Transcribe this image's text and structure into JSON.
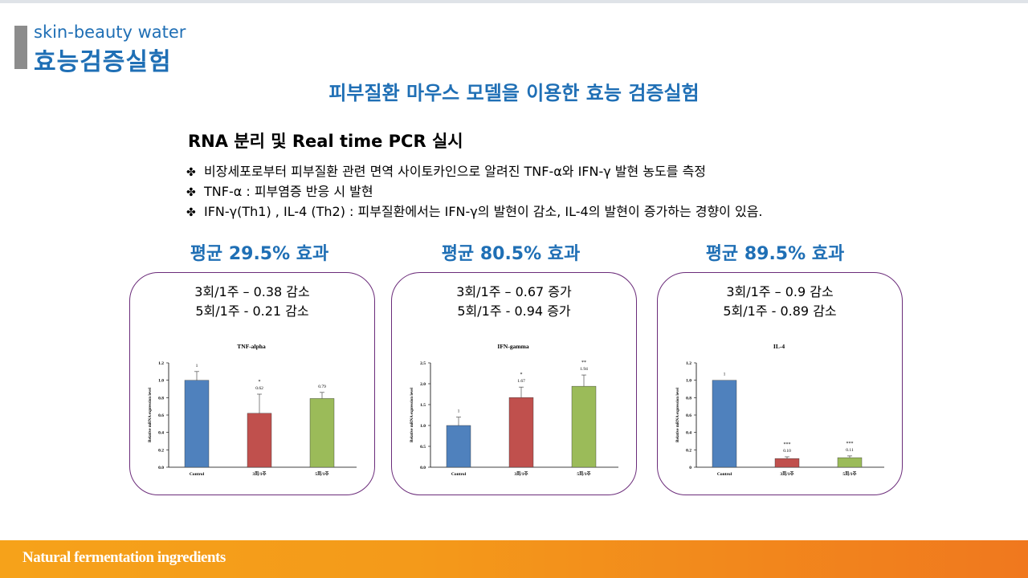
{
  "header": {
    "subtitle": "skin-beauty water",
    "title": "효능검증실험"
  },
  "headline": "피부질환 마우스 모델을 이용한 효능 검증실험",
  "section_title": "RNA 분리 및 Real time PCR 실시",
  "bullet_icon": "four-leaf-clover-icon",
  "bullets": [
    "비장세포로부터 피부질환 관련 면역 사이토카인으로 알려진 TNF-α와 IFN-γ 발현 농도를 측정",
    "TNF-α : 피부염증 반응 시 발현",
    "IFN-γ(Th1) , IL-4 (Th2) : 피부질환에서는 IFN-γ의 발현이 감소, IL-4의 발현이 증가하는 경향이 있음."
  ],
  "panels": [
    {
      "effect": "평균 29.5% 효과",
      "note1": "3회/1주 – 0.38 감소",
      "note2": "5회/1주 - 0.21 감소"
    },
    {
      "effect": "평균 80.5% 효과",
      "note1": "3회/1주 – 0.67 증가",
      "note2": "5회/1주 - 0.94 증가"
    },
    {
      "effect": "평균 89.5% 효과",
      "note1": "3회/1주 – 0.9 감소",
      "note2": "5회/1주 - 0.89 감소"
    }
  ],
  "colors": {
    "accent": "#1f6fb5",
    "panel_border": "#6b2c7a",
    "footer_from": "#f6a21a",
    "footer_to": "#f0781e"
  },
  "chart_data": [
    {
      "type": "bar",
      "title": "TNF-alpha",
      "ylabel": "Relative mRNA expression level",
      "categories": [
        "Control",
        "3회/1주",
        "5회/1주"
      ],
      "values": [
        1,
        0.62,
        0.79
      ],
      "errors": [
        0.1,
        0.22,
        0.07
      ],
      "value_labels": [
        "1",
        "0.62",
        "0.79"
      ],
      "significance": [
        "",
        "*",
        ""
      ],
      "bar_colors": [
        "#4f81bd",
        "#c0504d",
        "#9bbb59"
      ],
      "yticks": [
        "0.0",
        "0.2",
        "0.4",
        "0.6",
        "0.8",
        "1.0",
        "1.2"
      ],
      "ylim": [
        0,
        1.2
      ]
    },
    {
      "type": "bar",
      "title": "IFN-gamma",
      "ylabel": "Relative mRNA expression level",
      "categories": [
        "Control",
        "3회/1주",
        "5회/1주"
      ],
      "values": [
        1,
        1.67,
        1.94
      ],
      "errors": [
        0.2,
        0.25,
        0.27
      ],
      "value_labels": [
        "1",
        "1.67",
        "1.94"
      ],
      "significance": [
        "",
        "*",
        "**"
      ],
      "bar_colors": [
        "#4f81bd",
        "#c0504d",
        "#9bbb59"
      ],
      "yticks": [
        "0.0",
        "0.5",
        "1.0",
        "1.5",
        "2.0",
        "2.5"
      ],
      "ylim": [
        0,
        2.5
      ]
    },
    {
      "type": "bar",
      "title": "IL-4",
      "ylabel": "Relative mRNA expression level",
      "categories": [
        "Control",
        "3회/1주",
        "5회/1주"
      ],
      "values": [
        1,
        0.1,
        0.11
      ],
      "errors": [
        0,
        0.02,
        0.02
      ],
      "value_labels": [
        "1",
        "0.10",
        "0.11"
      ],
      "significance": [
        "",
        "***",
        "***"
      ],
      "bar_colors": [
        "#4f81bd",
        "#c0504d",
        "#9bbb59"
      ],
      "yticks": [
        "0",
        "0.2",
        "0.4",
        "0.6",
        "0.8",
        "1.0",
        "1.2"
      ],
      "ylim": [
        0,
        1.2
      ]
    }
  ],
  "footer": "Natural fermentation ingredients"
}
